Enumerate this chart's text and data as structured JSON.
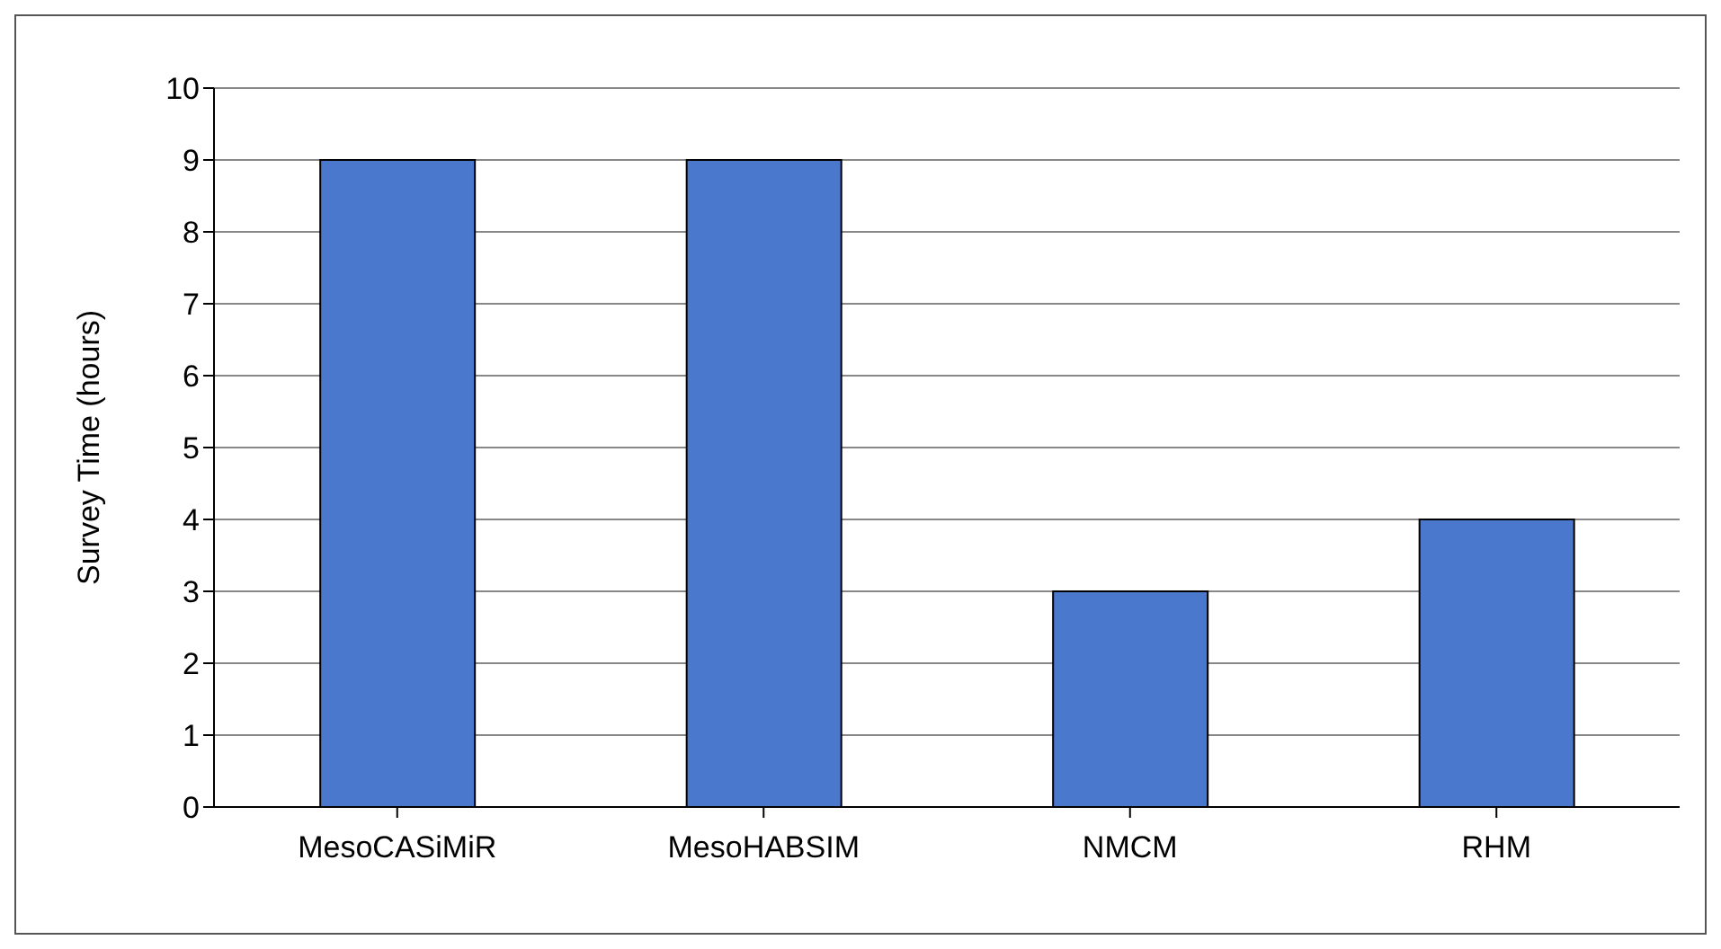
{
  "chart_data": {
    "type": "bar",
    "ylabel": "Survey Time (hours)",
    "categories": [
      "MesoCASiMiR",
      "MesoHABSIM",
      "NMCM",
      "RHM"
    ],
    "values": [
      9,
      9,
      3,
      4
    ],
    "color": "#4a78cc",
    "ylim": [
      0,
      10
    ],
    "yticks": [
      0,
      1,
      2,
      3,
      4,
      5,
      6,
      7,
      8,
      9,
      10
    ],
    "grid": "y"
  }
}
